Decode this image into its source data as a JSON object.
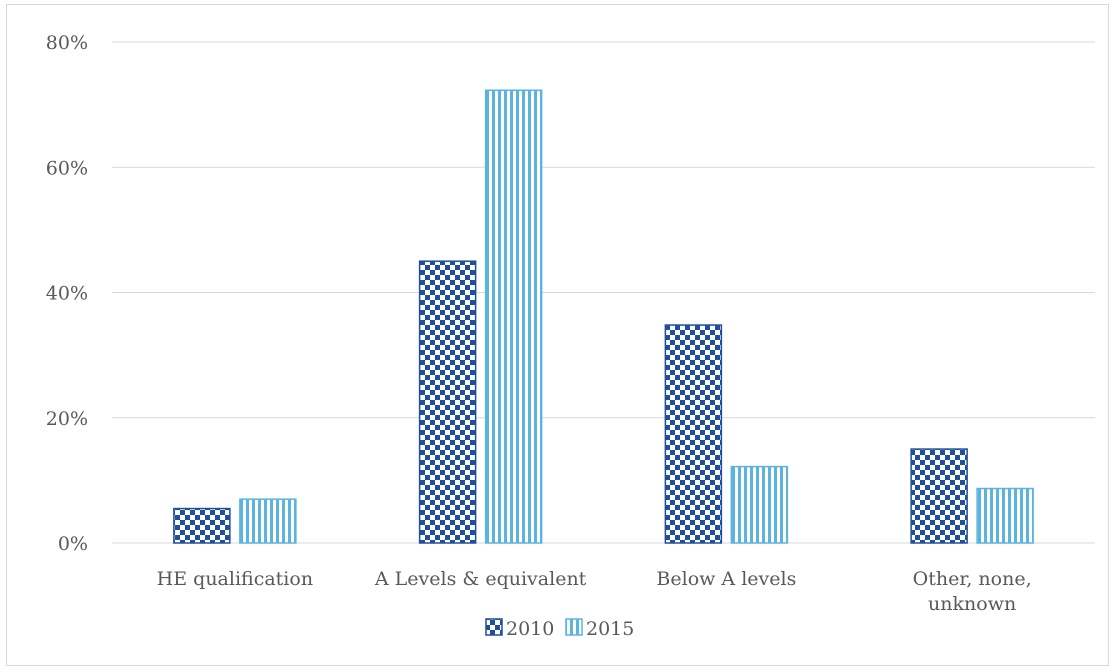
{
  "chart_data": {
    "type": "bar",
    "categories": [
      [
        "HE qualification"
      ],
      [
        "A Levels & equivalent"
      ],
      [
        "Below A levels"
      ],
      [
        "Other, none,",
        "unknown"
      ]
    ],
    "series": [
      {
        "name": "2010",
        "values": [
          5.5,
          45.0,
          34.8,
          15.0
        ],
        "color": "#1f4e9e",
        "pattern": "checker"
      },
      {
        "name": "2015",
        "values": [
          7.0,
          72.3,
          12.2,
          8.7
        ],
        "color": "#5bb4e0",
        "pattern": "vertical-stripes"
      }
    ],
    "yticks": [
      "0%",
      "20%",
      "40%",
      "60%",
      "80%"
    ],
    "ylim": [
      0,
      80
    ],
    "grid": true,
    "legend_position": "bottom"
  }
}
